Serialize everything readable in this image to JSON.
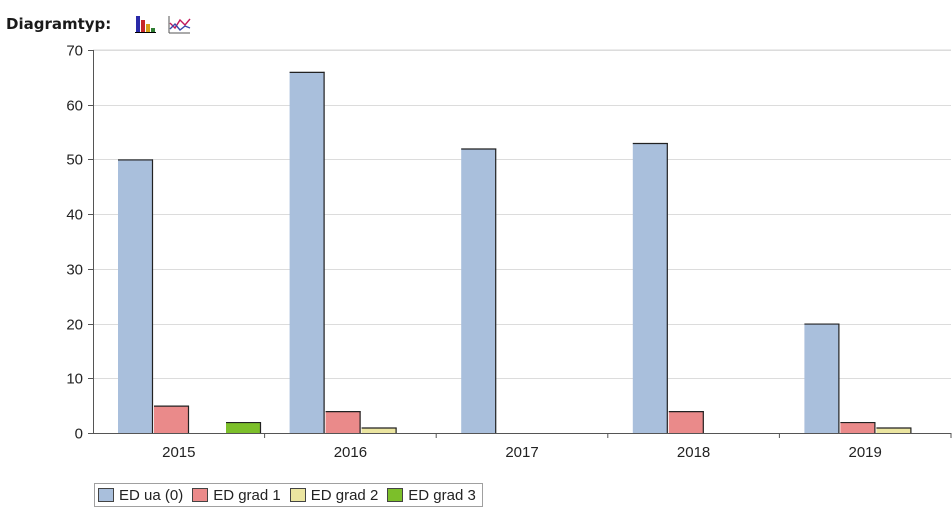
{
  "toolbar": {
    "label": "Diagramtyp:",
    "buttons": [
      {
        "icon": "bar-chart-icon"
      },
      {
        "icon": "line-chart-icon"
      }
    ]
  },
  "chart_data": {
    "type": "bar",
    "categories": [
      "2015",
      "2016",
      "2017",
      "2018",
      "2019"
    ],
    "series": [
      {
        "name": "ED ua (0)",
        "color": "#a9bfdc",
        "values": [
          50,
          66,
          52,
          53,
          20
        ]
      },
      {
        "name": "ED grad 1",
        "color": "#ea8a8a",
        "values": [
          5,
          4,
          0,
          4,
          2
        ]
      },
      {
        "name": "ED grad 2",
        "color": "#ebe5a0",
        "values": [
          0,
          1,
          0,
          0,
          1
        ]
      },
      {
        "name": "ED grad 3",
        "color": "#7cbf2a",
        "values": [
          2,
          0,
          0,
          0,
          0
        ]
      }
    ],
    "yticks": [
      0,
      10,
      20,
      30,
      40,
      50,
      60,
      70
    ],
    "ylim": [
      0,
      70
    ],
    "grid": true,
    "legend_placement": "bottom-left"
  }
}
